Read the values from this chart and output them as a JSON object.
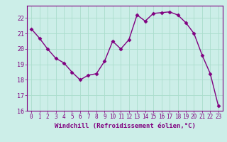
{
  "x": [
    0,
    1,
    2,
    3,
    4,
    5,
    6,
    7,
    8,
    9,
    10,
    11,
    12,
    13,
    14,
    15,
    16,
    17,
    18,
    19,
    20,
    21,
    22,
    23
  ],
  "y": [
    21.3,
    20.7,
    20.0,
    19.4,
    19.1,
    18.5,
    18.0,
    18.3,
    18.4,
    19.2,
    20.5,
    20.0,
    20.6,
    22.2,
    21.8,
    22.3,
    22.35,
    22.4,
    22.2,
    21.7,
    21.0,
    19.6,
    18.4,
    16.3
  ],
  "line_color": "#800080",
  "marker": "D",
  "marker_size": 2.5,
  "bg_color": "#cceee8",
  "grid_color": "#aaddcc",
  "ylim": [
    16,
    22.8
  ],
  "xlim": [
    -0.5,
    23.5
  ],
  "yticks": [
    16,
    17,
    18,
    19,
    20,
    21,
    22
  ],
  "xticks": [
    0,
    1,
    2,
    3,
    4,
    5,
    6,
    7,
    8,
    9,
    10,
    11,
    12,
    13,
    14,
    15,
    16,
    17,
    18,
    19,
    20,
    21,
    22,
    23
  ],
  "xlabel": "Windchill (Refroidissement éolien,°C)",
  "line_width": 1.0
}
